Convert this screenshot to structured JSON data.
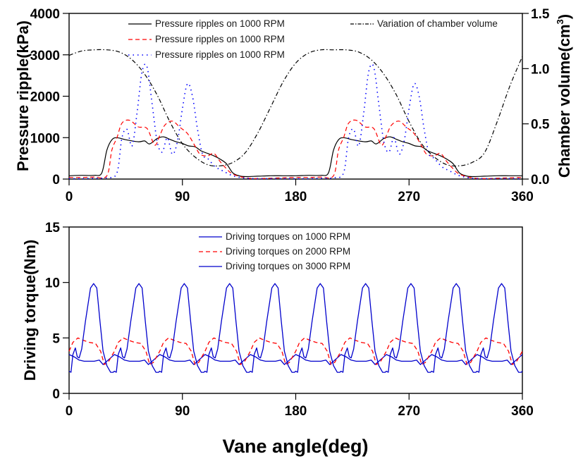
{
  "chart_data": [
    {
      "type": "line",
      "id": "pressure-chart",
      "title": "",
      "xlabel": "",
      "ylabel": "Pressure ripple(kPa)",
      "y2label": "Chamber volume(cm",
      "y2label_sup": "3",
      "y2label_close": ")",
      "xlim": [
        0,
        360
      ],
      "ylim": [
        0,
        4000
      ],
      "y2lim": [
        0,
        1.5
      ],
      "xticks": [
        0,
        90,
        180,
        270,
        360
      ],
      "xtick_labels": [
        "0",
        "90",
        "180",
        "270",
        "360"
      ],
      "yticks": [
        0,
        1000,
        2000,
        3000,
        4000
      ],
      "ytick_labels": [
        "0",
        "1000",
        "2000",
        "3000",
        "4000"
      ],
      "y2ticks": [
        0.0,
        0.5,
        1.0,
        1.5
      ],
      "y2tick_labels": [
        "0.0",
        "0.5",
        "1.0",
        "1.5"
      ],
      "grid": false,
      "legend_placement": "top",
      "series": [
        {
          "name": "Pressure ripples on 1000 RPM",
          "color": "#000000",
          "style": "solid",
          "axis": "left",
          "x": [
            0,
            10,
            20,
            26,
            30,
            34,
            38,
            45,
            55,
            60,
            64,
            70,
            75,
            80,
            85,
            90,
            95,
            100,
            105,
            110,
            115,
            120,
            125,
            130,
            135,
            140,
            150,
            160,
            170,
            180,
            190,
            200,
            206,
            210,
            214,
            218,
            225,
            235,
            240,
            244,
            250,
            255,
            260,
            265,
            270,
            275,
            280,
            285,
            290,
            295,
            300,
            305,
            310,
            315,
            320,
            330,
            340,
            350,
            360
          ],
          "y": [
            80,
            90,
            90,
            150,
            700,
            950,
            1000,
            950,
            900,
            920,
            850,
            980,
            1020,
            960,
            900,
            860,
            800,
            780,
            680,
            620,
            560,
            480,
            370,
            150,
            80,
            60,
            70,
            80,
            80,
            80,
            90,
            90,
            150,
            700,
            950,
            1000,
            950,
            900,
            920,
            850,
            980,
            1020,
            960,
            900,
            860,
            800,
            780,
            680,
            620,
            560,
            480,
            370,
            150,
            80,
            60,
            70,
            80,
            80,
            80
          ]
        },
        {
          "name": "Pressure ripples on 1000 RPM",
          "color": "#ff0000",
          "style": "dashed",
          "axis": "left",
          "x": [
            0,
            10,
            20,
            30,
            34,
            38,
            42,
            48,
            55,
            62,
            68,
            72,
            76,
            82,
            88,
            94,
            100,
            104,
            110,
            115,
            120,
            125,
            130,
            140,
            150,
            160,
            170,
            180,
            190,
            200,
            210,
            214,
            218,
            222,
            228,
            235,
            242,
            248,
            252,
            256,
            262,
            268,
            274,
            280,
            284,
            290,
            295,
            300,
            305,
            310,
            320,
            330,
            340,
            350,
            360
          ],
          "y": [
            40,
            40,
            50,
            80,
            700,
            1000,
            1350,
            1420,
            1260,
            1220,
            820,
            1050,
            1300,
            1400,
            1250,
            1100,
            800,
            600,
            560,
            620,
            420,
            250,
            120,
            30,
            10,
            20,
            30,
            40,
            40,
            50,
            80,
            700,
            1000,
            1350,
            1420,
            1260,
            1220,
            820,
            1050,
            1300,
            1400,
            1250,
            1100,
            800,
            600,
            560,
            620,
            420,
            250,
            120,
            30,
            10,
            20,
            30,
            40
          ]
        },
        {
          "name": "Pressure ripples on 1000 RPM",
          "color": "#0000ff",
          "style": "dotted",
          "axis": "left",
          "x": [
            0,
            10,
            20,
            30,
            38,
            42,
            46,
            50,
            54,
            58,
            62,
            66,
            70,
            74,
            78,
            82,
            86,
            90,
            94,
            98,
            102,
            106,
            110,
            116,
            122,
            130,
            140,
            150,
            160,
            170,
            180,
            190,
            200,
            210,
            218,
            222,
            226,
            230,
            234,
            238,
            242,
            246,
            250,
            254,
            258,
            262,
            266,
            270,
            274,
            278,
            282,
            286,
            290,
            296,
            302,
            310,
            320,
            330,
            340,
            350,
            360
          ],
          "y": [
            10,
            10,
            20,
            30,
            150,
            1000,
            1200,
            800,
            1600,
            2600,
            2700,
            1800,
            900,
            650,
            1000,
            600,
            900,
            1700,
            2300,
            2000,
            1200,
            600,
            500,
            300,
            200,
            80,
            20,
            10,
            10,
            10,
            10,
            10,
            20,
            30,
            150,
            1000,
            1200,
            800,
            1600,
            2600,
            2700,
            1800,
            900,
            650,
            1000,
            600,
            900,
            1700,
            2300,
            2000,
            1200,
            600,
            500,
            300,
            200,
            80,
            20,
            10,
            10,
            10,
            10
          ]
        },
        {
          "name": "Variation of chamber volume",
          "color": "#000000",
          "style": "dashdot",
          "axis": "right",
          "x": [
            0,
            10,
            20,
            30,
            40,
            50,
            60,
            70,
            80,
            90,
            100,
            110,
            120,
            130,
            140,
            150,
            160,
            170,
            180,
            190,
            200,
            210,
            220,
            230,
            240,
            250,
            260,
            270,
            280,
            290,
            300,
            310,
            320,
            330,
            340,
            350,
            360
          ],
          "y": [
            1.12,
            1.16,
            1.17,
            1.17,
            1.15,
            1.08,
            0.95,
            0.76,
            0.52,
            0.32,
            0.2,
            0.13,
            0.12,
            0.15,
            0.24,
            0.42,
            0.65,
            0.88,
            1.05,
            1.14,
            1.17,
            1.17,
            1.17,
            1.15,
            1.08,
            0.95,
            0.76,
            0.52,
            0.32,
            0.2,
            0.13,
            0.12,
            0.15,
            0.24,
            0.52,
            0.84,
            1.11
          ]
        }
      ]
    },
    {
      "type": "line",
      "id": "torque-chart",
      "title": "",
      "xlabel": "Vane angle(deg)",
      "ylabel": "Driving torque(Nm)",
      "xlim": [
        0,
        360
      ],
      "ylim": [
        0,
        15
      ],
      "xticks": [
        0,
        90,
        180,
        270,
        360
      ],
      "xtick_labels": [
        "0",
        "90",
        "180",
        "270",
        "360"
      ],
      "yticks": [
        0,
        5,
        10,
        15
      ],
      "ytick_labels": [
        "0",
        "5",
        "10",
        "15"
      ],
      "grid": false,
      "legend_placement": "top-center",
      "period_deg": 36,
      "series": [
        {
          "name": "Driving torques on 1000 RPM",
          "color": "#0000cc",
          "style": "solid",
          "period_profile": {
            "x": [
              0,
              4,
              8,
              12,
              16,
              20,
              24,
              27,
              30,
              33,
              36
            ],
            "y": [
              3.5,
              3.3,
              3.0,
              2.9,
              2.9,
              2.9,
              3.0,
              2.6,
              2.9,
              3.2,
              3.5
            ]
          }
        },
        {
          "name": "Driving torques on 2000 RPM",
          "color": "#ff0000",
          "style": "dashed",
          "period_profile": {
            "x": [
              0,
              3,
              7,
              11,
              16,
              21,
              25,
              28,
              31,
              34,
              36
            ],
            "y": [
              3.8,
              4.6,
              5.0,
              4.8,
              4.6,
              4.5,
              3.8,
              2.6,
              2.8,
              3.4,
              3.8
            ]
          }
        },
        {
          "name": "Driving torques on 3000 RPM",
          "color": "#0000cc",
          "style": "solid",
          "period_profile": {
            "x": [
              0,
              1.5,
              3,
              5,
              6.5,
              8,
              10,
              13,
              17,
              19.5,
              22,
              24.5,
              27,
              30,
              33,
              35,
              36
            ],
            "y": [
              2.0,
              1.9,
              3.5,
              4.1,
              3.3,
              3.2,
              4.0,
              6.5,
              9.5,
              9.9,
              9.5,
              6.5,
              3.8,
              2.5,
              1.9,
              1.9,
              2.0
            ]
          }
        }
      ]
    }
  ]
}
